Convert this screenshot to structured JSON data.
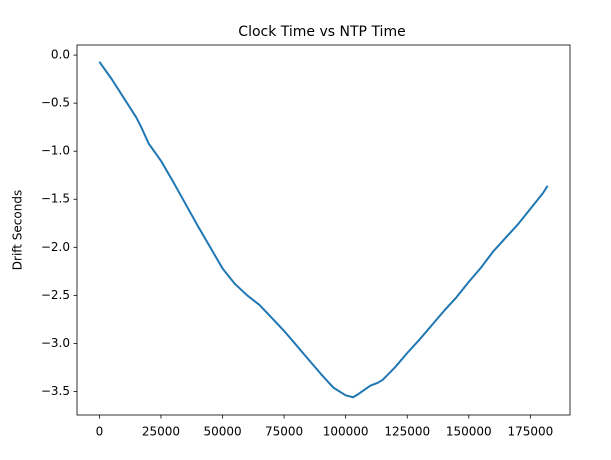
{
  "chart_data": {
    "type": "line",
    "title": "Clock Time vs NTP Time",
    "ylabel": "Drift Seconds",
    "x": [
      0,
      5000,
      10000,
      15000,
      17000,
      20000,
      25000,
      30000,
      35000,
      40000,
      45000,
      50000,
      55000,
      60000,
      65000,
      68000,
      75000,
      80000,
      85000,
      90000,
      95000,
      100000,
      103000,
      105000,
      110000,
      113000,
      115000,
      120000,
      125000,
      130000,
      135000,
      140000,
      145000,
      150000,
      155000,
      160000,
      165000,
      170000,
      175000,
      180000,
      182000
    ],
    "series": [
      {
        "color": "#1f77b4",
        "values": [
          -0.07,
          -0.25,
          -0.45,
          -0.65,
          -0.75,
          -0.92,
          -1.1,
          -1.32,
          -1.55,
          -1.78,
          -2.0,
          -2.22,
          -2.38,
          -2.5,
          -2.6,
          -2.68,
          -2.87,
          -3.02,
          -3.17,
          -3.32,
          -3.46,
          -3.54,
          -3.56,
          -3.53,
          -3.44,
          -3.41,
          -3.38,
          -3.25,
          -3.1,
          -2.96,
          -2.81,
          -2.66,
          -2.52,
          -2.36,
          -2.21,
          -2.04,
          -1.9,
          -1.76,
          -1.6,
          -1.44,
          -1.36
        ]
      }
    ],
    "xlim": [
      -9100,
      191100
    ],
    "ylim": [
      -3.745,
      0.105
    ],
    "xticks": [
      0,
      25000,
      50000,
      75000,
      100000,
      125000,
      150000,
      175000
    ],
    "yticks": [
      {
        "value": 0,
        "label": "0.0"
      },
      {
        "value": -0.5,
        "label": "−0.5"
      },
      {
        "value": -1,
        "label": "−1.0"
      },
      {
        "value": -1.5,
        "label": "−1.5"
      },
      {
        "value": -2,
        "label": "−2.0"
      },
      {
        "value": -2.5,
        "label": "−2.5"
      },
      {
        "value": -3,
        "label": "−3.0"
      },
      {
        "value": -3.5,
        "label": "−3.5"
      }
    ],
    "grid": false
  }
}
